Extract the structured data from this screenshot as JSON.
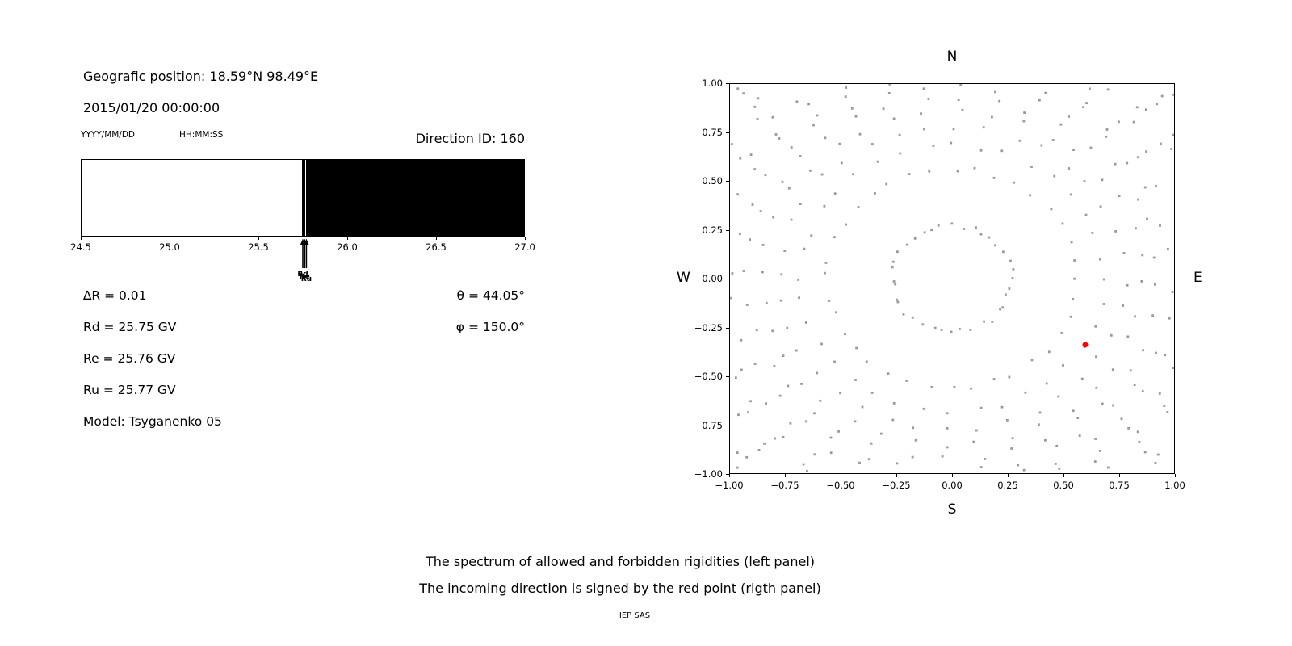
{
  "header": {
    "position": "Geografic position: 18.59°N 98.49°E",
    "datetime": "2015/01/20 00:00:00",
    "date_format_hint": "YYYY/MM/DD",
    "time_format_hint": "HH:MM:SS",
    "direction_id": "Direction ID: 160"
  },
  "info": {
    "delta_r": "∆R = 0.01",
    "rd": "Rd = 25.75 GV",
    "re": "Re = 25.76 GV",
    "ru": "Ru = 25.77 GV",
    "model": "Model: Tsyganenko 05",
    "theta": "θ = 44.05°",
    "phi": "φ = 150.0°"
  },
  "captions": {
    "line1": "The spectrum of allowed and forbidden rigidities (left panel)",
    "line2": "The incoming direction is signed by the red point (rigth panel)",
    "credit": "IEP SAS"
  },
  "chart_data": [
    {
      "id": "rigidity-spectrum",
      "type": "area",
      "x_range": [
        24.5,
        27.0
      ],
      "x_ticks": [
        24.5,
        25.0,
        25.5,
        26.0,
        26.5,
        27.0
      ],
      "x_tick_labels": [
        "24.5",
        "25.0",
        "25.5",
        "26.0",
        "26.5",
        "27.0"
      ],
      "allowed_region": [
        24.5,
        25.741
      ],
      "forbidden_region": [
        25.741,
        27.0
      ],
      "allowed_window": [
        25.757,
        25.763
      ],
      "markers": [
        {
          "label": "Rd",
          "x": 25.75
        },
        {
          "label": "Re",
          "x": 25.76
        },
        {
          "label": "Ru",
          "x": 25.77
        }
      ],
      "values": {
        "delta_R": 0.01,
        "Rd_GV": 25.75,
        "Re_GV": 25.76,
        "Ru_GV": 25.77,
        "theta_deg": 44.05,
        "phi_deg": 150.0,
        "model": "Tsyganenko 05"
      },
      "colors": {
        "allowed": "#ffffff",
        "forbidden": "#000000",
        "border": "#000000"
      }
    },
    {
      "id": "incoming-direction-map",
      "type": "scatter",
      "xlim": [
        -1,
        1
      ],
      "ylim": [
        -1,
        1
      ],
      "x_ticks": [
        -1.0,
        -0.75,
        -0.5,
        -0.25,
        0.0,
        0.25,
        0.5,
        0.75,
        1.0
      ],
      "x_tick_labels": [
        "−1.00",
        "−0.75",
        "−0.50",
        "−0.25",
        "0.00",
        "0.25",
        "0.50",
        "0.75",
        "1.00"
      ],
      "y_ticks": [
        -1.0,
        -0.75,
        -0.5,
        -0.25,
        0.0,
        0.25,
        0.5,
        0.75,
        1.0
      ],
      "y_tick_labels": [
        "−1.00",
        "−0.75",
        "−0.50",
        "−0.25",
        "0.00",
        "0.25",
        "0.50",
        "0.75",
        "1.00"
      ],
      "compass": {
        "top": "N",
        "bottom": "S",
        "left": "W",
        "right": "E"
      },
      "red_point": {
        "x": 0.6,
        "y": -0.34,
        "color": "#ff0000"
      },
      "dot_grid": {
        "description": "radial spokes of gray dots (asymptotic direction traces) with inner dotted ring",
        "spokes": 36,
        "points_per_spoke": 20,
        "r_inner": 0.27,
        "r_outer": 1.55,
        "radial_exponent": 0.5,
        "spiral_drift_rad": 0.15,
        "jitter": 0.012,
        "dot_color": "#7f7f7f",
        "dot_size_px": 3
      },
      "grid": false,
      "legend": false
    }
  ]
}
